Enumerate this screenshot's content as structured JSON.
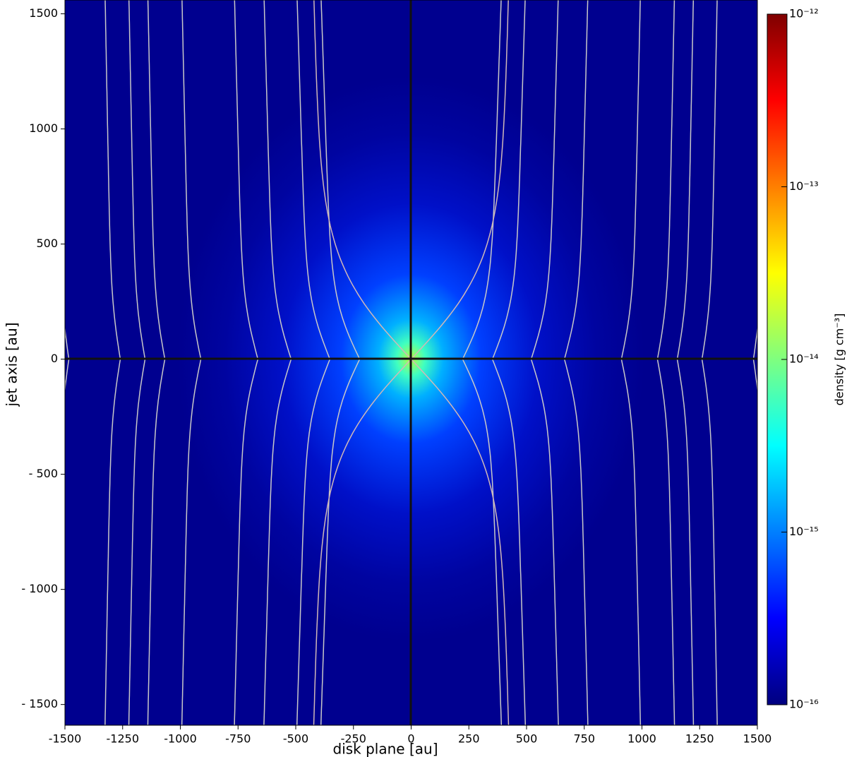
{
  "chart_data": {
    "type": "heatmap",
    "xlabel": "disk plane [au]",
    "ylabel": "jet axis [au]",
    "xlim": [
      -1500,
      1500
    ],
    "ylim": [
      -1590,
      1560
    ],
    "xticks": [
      -1500,
      -1250,
      -1000,
      -750,
      -500,
      -250,
      0,
      250,
      500,
      750,
      1000,
      1250,
      1500
    ],
    "yticks": [
      {
        "value": -1500,
        "label": "- 1500"
      },
      {
        "value": -1000,
        "label": "- 1000"
      },
      {
        "value": -500,
        "label": "- 500"
      },
      0,
      500,
      1000,
      1500
    ],
    "colorbar": {
      "label": "density [g cm⁻³]",
      "colormap": "jet",
      "log": true,
      "lim": [
        1e-16,
        1e-12
      ],
      "ticks": [
        {
          "value": 1e-16,
          "label": "10⁻¹⁶"
        },
        {
          "value": 1e-15,
          "label": "10⁻¹⁵"
        },
        {
          "value": 1e-14,
          "label": "10⁻¹⁴"
        },
        {
          "value": 1e-13,
          "label": "10⁻¹³"
        },
        {
          "value": 1e-12,
          "label": "10⁻¹²"
        }
      ]
    }
  }
}
